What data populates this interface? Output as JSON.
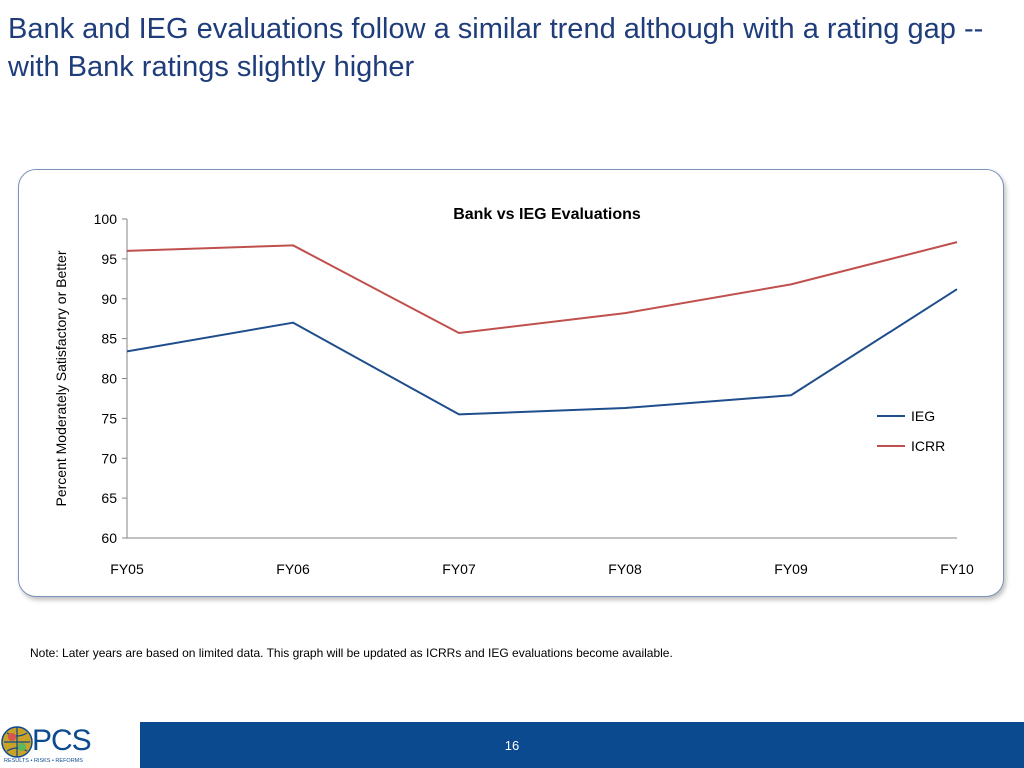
{
  "slide": {
    "title": "Bank and IEG evaluations follow a similar trend although with a rating gap -- with Bank ratings slightly higher",
    "note": "Note: Later years are based on limited data. This graph will be updated as ICRRs and IEG evaluations become available.",
    "page_number": "16"
  },
  "logo": {
    "word": "PCS",
    "tagline": "RESULTS • RISKS • REFORMS"
  },
  "colors": {
    "title": "#1f3d7a",
    "footer": "#0b4a8e",
    "ieg": "#1f4e8c",
    "icrr": "#c0504d"
  },
  "chart_data": {
    "type": "line",
    "title": "Bank vs IEG Evaluations",
    "xlabel": "",
    "ylabel": "Percent Moderately Satisfactory or Better",
    "categories": [
      "FY05",
      "FY06",
      "FY07",
      "FY08",
      "FY09",
      "FY10"
    ],
    "ylim": [
      60,
      100
    ],
    "yticks": [
      60,
      65,
      70,
      75,
      80,
      85,
      90,
      95,
      100
    ],
    "grid": false,
    "legend_position": "right",
    "series": [
      {
        "name": "IEG",
        "color": "#1f4e8c",
        "values": [
          83.4,
          87.0,
          75.5,
          76.3,
          77.9,
          91.2
        ]
      },
      {
        "name": "ICRR",
        "color": "#c0504d",
        "values": [
          96.0,
          96.7,
          85.7,
          88.2,
          91.8,
          97.1
        ]
      }
    ]
  }
}
